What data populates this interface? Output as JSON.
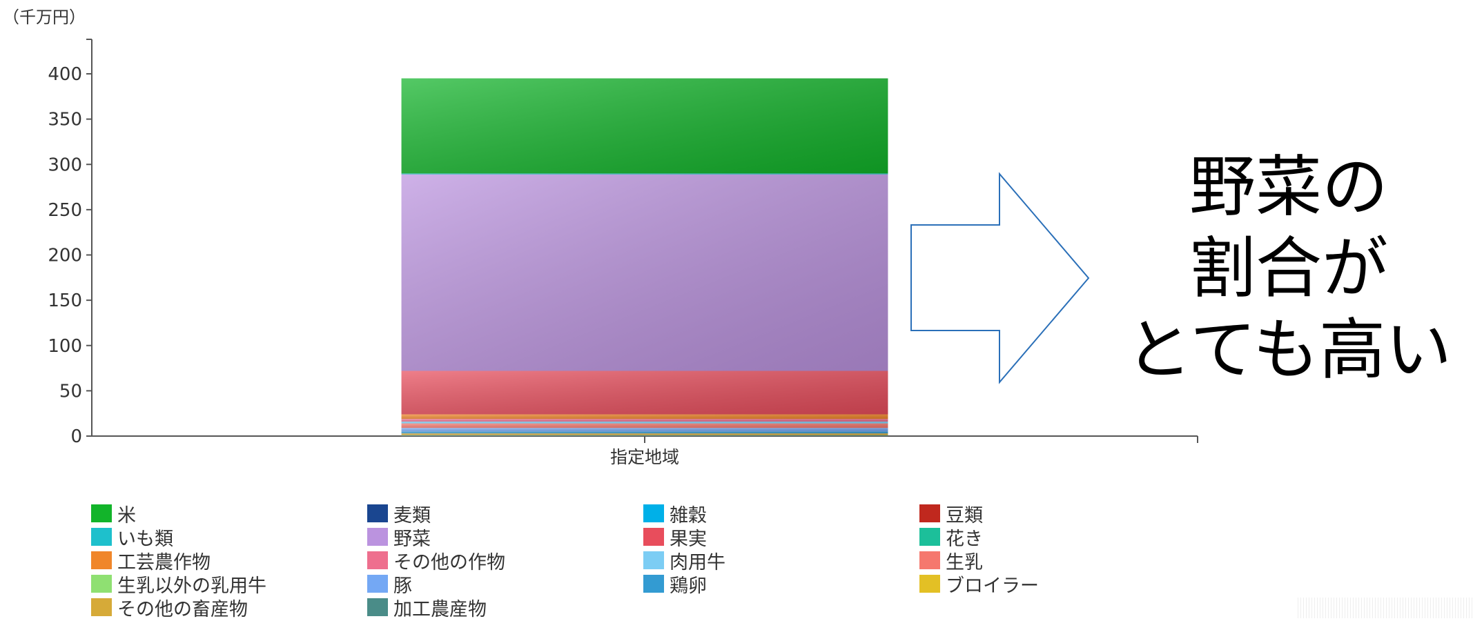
{
  "chart_data": {
    "type": "bar",
    "stacked": true,
    "unit_label": "（千万円）",
    "categories": [
      "指定地域"
    ],
    "ylim": [
      0,
      400
    ],
    "yticks": [
      0,
      50,
      100,
      150,
      200,
      250,
      300,
      350,
      400
    ],
    "grid": false,
    "legend_position": "bottom",
    "series": [
      {
        "name": "米",
        "values": [
          105
        ],
        "color": "#12b42a"
      },
      {
        "name": "麦類",
        "values": [
          0
        ],
        "color": "#1a4690"
      },
      {
        "name": "雑穀",
        "values": [
          0
        ],
        "color": "#00b0e8"
      },
      {
        "name": "豆類",
        "values": [
          0
        ],
        "color": "#c0281e"
      },
      {
        "name": "いも類",
        "values": [
          1
        ],
        "color": "#1ec0cc"
      },
      {
        "name": "野菜",
        "values": [
          217
        ],
        "color": "#bb93df"
      },
      {
        "name": "果実",
        "values": [
          48
        ],
        "color": "#e84d5c"
      },
      {
        "name": "花き",
        "values": [
          0
        ],
        "color": "#1cbf9a"
      },
      {
        "name": "工芸農作物",
        "values": [
          5
        ],
        "color": "#f0862a"
      },
      {
        "name": "その他の作物",
        "values": [
          3
        ],
        "color": "#ee6f8e"
      },
      {
        "name": "肉用牛",
        "values": [
          2
        ],
        "color": "#7ccdf4"
      },
      {
        "name": "生乳",
        "values": [
          5
        ],
        "color": "#f5786e"
      },
      {
        "name": "生乳以外の乳用牛",
        "values": [
          0
        ],
        "color": "#8fe072"
      },
      {
        "name": "豚",
        "values": [
          4
        ],
        "color": "#74a8f4"
      },
      {
        "name": "鶏卵",
        "values": [
          2
        ],
        "color": "#339bd2"
      },
      {
        "name": "ブロイラー",
        "values": [
          0
        ],
        "color": "#e3c025"
      },
      {
        "name": "その他の畜産物",
        "values": [
          2
        ],
        "color": "#d6aa38"
      },
      {
        "name": "加工農産物",
        "values": [
          1
        ],
        "color": "#4a8c88"
      }
    ]
  },
  "callout": {
    "lines": [
      "野菜の",
      "割合が",
      "とても高い"
    ]
  }
}
